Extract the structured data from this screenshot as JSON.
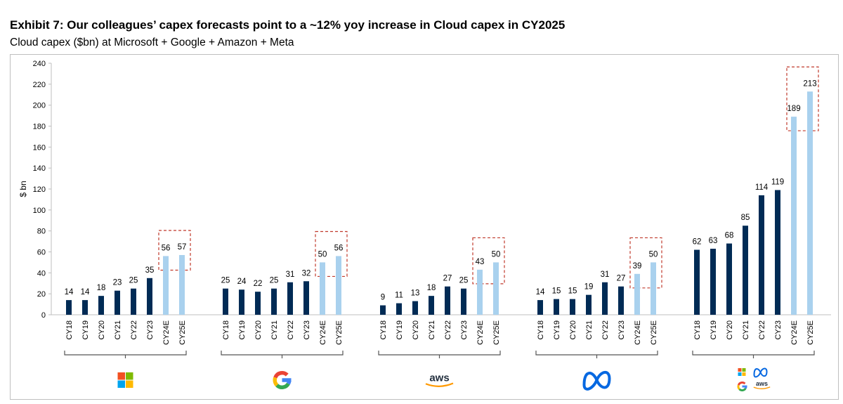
{
  "header": {
    "title": "Exhibit 7: Our colleagues’ capex forecasts point to a ~12% yoy increase in Cloud capex in CY2025",
    "subtitle": "Cloud capex ($bn) at Microsoft + Google + Amazon + Meta"
  },
  "colors": {
    "actual": "#002b55",
    "estimate": "#a9d1ee",
    "highlight_box": "#c0392b",
    "axis": "#bfbfbf"
  },
  "chart_data": {
    "type": "bar",
    "ylabel": "$ bn",
    "ylim": [
      0,
      240
    ],
    "yticks": [
      "0",
      "20",
      "40",
      "60",
      "80",
      "100",
      "120",
      "140",
      "160",
      "180",
      "200",
      "220",
      "240"
    ],
    "grid": false,
    "categories": [
      "CY18",
      "CY19",
      "CY20",
      "CY21",
      "CY22",
      "CY23",
      "CY24E",
      "CY25E"
    ],
    "estimate_categories": [
      "CY24E",
      "CY25E"
    ],
    "groups": [
      {
        "icon": "microsoft-logo-icon",
        "values": [
          14,
          14,
          18,
          23,
          25,
          35,
          56,
          57
        ],
        "labels": [
          "14",
          "14",
          "18",
          "23",
          "25",
          "35",
          "56",
          "57"
        ]
      },
      {
        "icon": "google-logo-icon",
        "values": [
          25,
          24,
          22,
          25,
          31,
          32,
          50,
          56
        ],
        "labels": [
          "25",
          "24",
          "22",
          "25",
          "31",
          "32",
          "50",
          "56"
        ]
      },
      {
        "icon": "aws-logo-icon",
        "logo_text": "aws",
        "values": [
          9,
          11,
          13,
          18,
          27,
          25,
          43,
          50
        ],
        "labels": [
          "9",
          "11",
          "13",
          "18",
          "27",
          "25",
          "43",
          "50"
        ]
      },
      {
        "icon": "meta-logo-icon",
        "values": [
          14,
          15,
          15,
          19,
          31,
          27,
          39,
          50
        ],
        "labels": [
          "14",
          "15",
          "15",
          "19",
          "31",
          "27",
          "39",
          "50"
        ]
      },
      {
        "icon": "combined-logos-icon",
        "logo_text": "aws",
        "values": [
          62,
          63,
          68,
          85,
          114,
          119,
          189,
          213
        ],
        "labels": [
          "62",
          "63",
          "68",
          "85",
          "114",
          "119",
          "189",
          "213"
        ]
      }
    ]
  }
}
